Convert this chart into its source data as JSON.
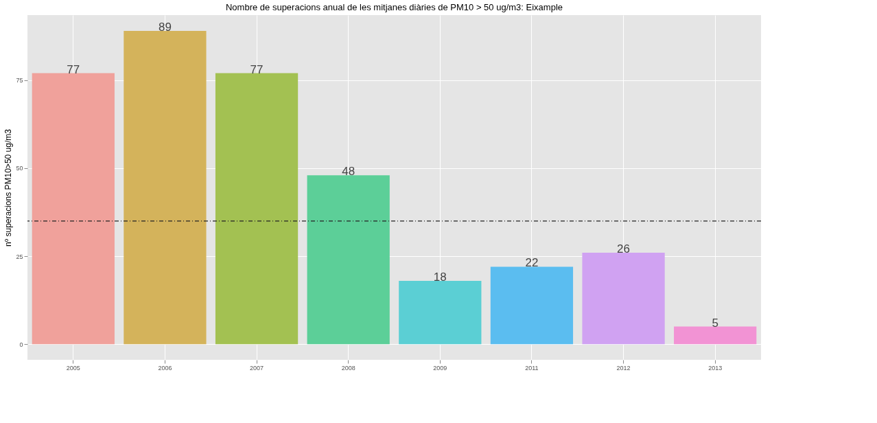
{
  "chart_data": {
    "type": "bar",
    "title": "Nombre de superacions anual de les mitjanes diàries de PM10 > 50 ug/m3: Eixample",
    "ylabel": "nº superacions PM10>50 ug/m3",
    "categories": [
      "2005",
      "2006",
      "2007",
      "2008",
      "2009",
      "2011",
      "2012",
      "2013"
    ],
    "values": [
      77,
      89,
      77,
      48,
      18,
      22,
      26,
      5
    ],
    "colors": [
      "#f0a19b",
      "#d4b35b",
      "#a3c152",
      "#5ccf98",
      "#5bcfd4",
      "#5bbdf0",
      "#d0a2f2",
      "#f293d4"
    ],
    "ylim": [
      -4.45,
      93.5
    ],
    "yticks": [
      0,
      25,
      50,
      75
    ],
    "grid": true,
    "data_labels": true,
    "ref_lines": [
      {
        "axis": "y",
        "value": 35,
        "color": "#222222",
        "line_style": "dashdot"
      }
    ]
  }
}
